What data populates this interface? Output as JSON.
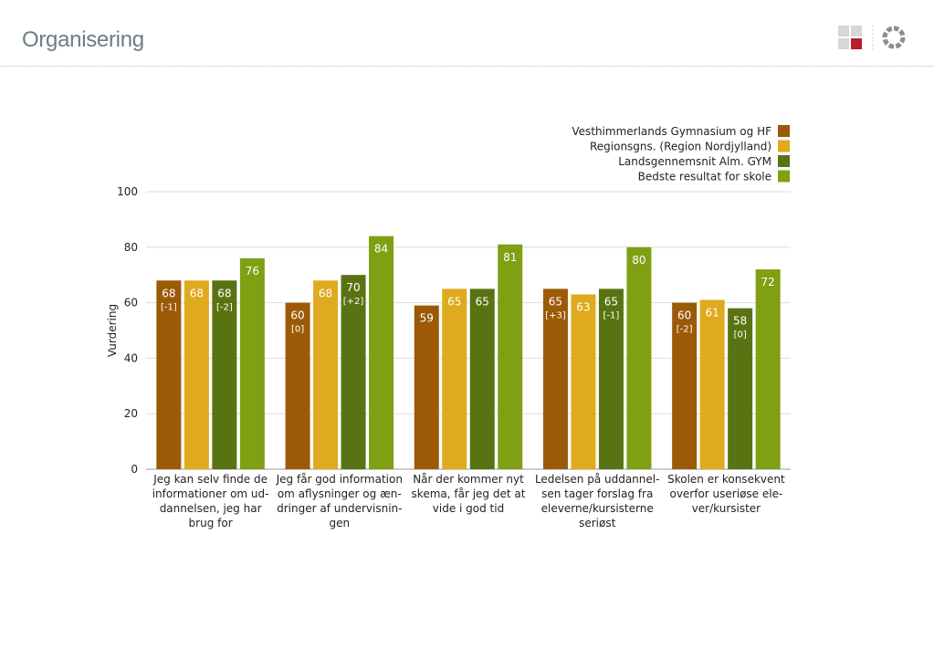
{
  "page": {
    "title": "Organisering"
  },
  "logo": {
    "icons": [
      "grid-icon",
      "ring-icon"
    ],
    "accent": "#b5202e"
  },
  "chart_data": {
    "type": "bar",
    "ylabel": "Vurdering",
    "ylim": [
      0,
      100
    ],
    "yticks": [
      0,
      20,
      40,
      60,
      80,
      100
    ],
    "grid": true,
    "legend_position": "top-right",
    "categories": [
      [
        "Jeg kan selv finde de",
        "informationer om ud-",
        "dannelsen, jeg har",
        "brug for"
      ],
      [
        "Jeg får god information",
        "om aflysninger og æn-",
        "dringer af undervisnin-",
        "gen"
      ],
      [
        "Når der kommer nyt",
        "skema, får jeg det at",
        "vide i god tid"
      ],
      [
        "Ledelsen på uddannel-",
        "sen tager forslag fra",
        "eleverne/kursisterne",
        "seriøst"
      ],
      [
        "Skolen er konsekvent",
        "overfor useriøse ele-",
        "ver/kursister"
      ]
    ],
    "series": [
      {
        "name": "Vesthimmerlands Gymnasium og HF",
        "color": "#9c5a07",
        "values": [
          68,
          60,
          59,
          65,
          60
        ],
        "deltas": [
          "[-1]",
          "[0]",
          "",
          "[+3]",
          "[-2]"
        ]
      },
      {
        "name": "Regionsgns. (Region Nordjylland)",
        "color": "#e0aa1e",
        "values": [
          68,
          68,
          65,
          63,
          61
        ],
        "deltas": [
          "",
          "",
          "",
          "",
          ""
        ]
      },
      {
        "name": "Landsgennemsnit Alm. GYM",
        "color": "#5a7312",
        "values": [
          68,
          70,
          65,
          65,
          58
        ],
        "deltas": [
          "[-2]",
          "[+2]",
          "",
          "[-1]",
          "[0]"
        ]
      },
      {
        "name": "Bedste resultat for skole",
        "color": "#7ea012",
        "values": [
          76,
          84,
          81,
          80,
          72
        ],
        "deltas": [
          "",
          "",
          "",
          "",
          ""
        ]
      }
    ]
  }
}
